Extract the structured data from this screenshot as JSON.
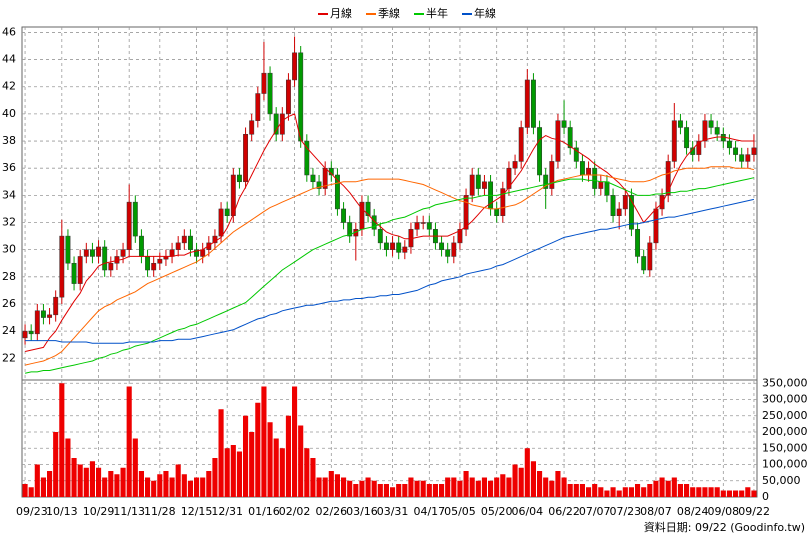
{
  "chart_data": {
    "type": "candlestick",
    "legend": "top",
    "grid": true,
    "up_color": "#d00000",
    "down_color": "#009a00",
    "categories": [
      "09/23",
      null,
      null,
      null,
      null,
      null,
      "10/13",
      null,
      null,
      null,
      null,
      null,
      "10/29",
      null,
      null,
      null,
      null,
      "11/13",
      null,
      null,
      null,
      null,
      "11/28",
      null,
      null,
      null,
      null,
      null,
      "12/15",
      null,
      null,
      null,
      null,
      "12/31",
      null,
      null,
      null,
      null,
      null,
      "01/16",
      null,
      null,
      null,
      null,
      "02/02",
      null,
      null,
      null,
      null,
      null,
      "02/26",
      null,
      null,
      null,
      null,
      "03/16",
      null,
      null,
      null,
      null,
      "03/31",
      null,
      null,
      null,
      null,
      null,
      "04/17",
      null,
      null,
      null,
      null,
      "05/05",
      null,
      null,
      null,
      null,
      null,
      "05/20",
      null,
      null,
      null,
      null,
      "06/04",
      null,
      null,
      null,
      null,
      null,
      "06/22",
      null,
      null,
      null,
      null,
      "07/07",
      null,
      null,
      null,
      null,
      "07/23",
      null,
      null,
      null,
      null,
      "08/07",
      null,
      null,
      null,
      null,
      null,
      "08/24",
      null,
      null,
      null,
      null,
      "09/08",
      null,
      null,
      null,
      null,
      "09/22"
    ],
    "open": [
      23.5,
      24.0,
      23.8,
      25.5,
      25.0,
      25.2,
      26.5,
      31.0,
      29.0,
      27.5,
      29.5,
      30.0,
      29.5,
      30.2,
      28.5,
      29.0,
      29.5,
      30.0,
      33.5,
      31.0,
      29.5,
      28.5,
      29.0,
      29.3,
      29.5,
      30.0,
      30.5,
      31.0,
      30.0,
      29.5,
      30.0,
      30.5,
      31.0,
      33.0,
      32.5,
      35.5,
      35.0,
      38.5,
      39.5,
      41.5,
      43.0,
      40.0,
      38.5,
      40.0,
      42.5,
      44.5,
      38.0,
      35.5,
      35.0,
      34.5,
      36.0,
      35.5,
      33.0,
      32.0,
      31.0,
      31.5,
      33.5,
      32.5,
      31.5,
      30.5,
      30.0,
      30.5,
      29.8,
      30.2,
      31.5,
      32.0,
      32.0,
      31.5,
      30.5,
      30.0,
      29.5,
      30.5,
      31.5,
      34.0,
      35.5,
      34.5,
      35.0,
      33.0,
      32.5,
      34.5,
      36.0,
      36.5,
      39.0,
      42.5,
      39.0,
      35.5,
      34.5,
      36.5,
      39.5,
      39.0,
      37.5,
      36.5,
      35.5,
      36.0,
      34.5,
      35.0,
      34.0,
      32.5,
      33.0,
      34.0,
      31.5,
      29.5,
      28.5,
      30.5,
      33.0,
      34.0,
      36.5,
      39.5,
      39.0,
      37.5,
      37.0,
      38.0,
      39.5,
      39.0,
      38.5,
      38.0,
      37.5,
      37.0,
      36.5,
      37.0
    ],
    "high": [
      24.5,
      24.5,
      26.0,
      26.0,
      25.7,
      27.0,
      32.2,
      31.5,
      29.5,
      30.0,
      30.5,
      30.5,
      30.7,
      30.7,
      29.5,
      30.0,
      30.5,
      34.8,
      34.0,
      31.5,
      30.0,
      29.5,
      29.8,
      30.0,
      30.5,
      31.0,
      31.5,
      31.5,
      30.5,
      30.5,
      31.0,
      31.5,
      33.5,
      33.5,
      36.0,
      36.0,
      39.0,
      40.0,
      42.0,
      45.3,
      43.5,
      40.5,
      40.5,
      43.0,
      45.7,
      45.0,
      38.5,
      36.0,
      35.5,
      36.5,
      36.5,
      36.0,
      33.5,
      32.5,
      32.0,
      34.0,
      34.0,
      33.0,
      32.0,
      31.0,
      31.0,
      31.0,
      30.7,
      32.0,
      32.5,
      32.5,
      32.5,
      32.0,
      31.0,
      30.5,
      31.0,
      32.0,
      34.5,
      36.0,
      36.0,
      35.5,
      35.5,
      33.5,
      35.0,
      36.5,
      37.0,
      39.5,
      43.3,
      43.0,
      39.5,
      36.0,
      37.0,
      40.0,
      41.0,
      39.5,
      38.0,
      37.0,
      36.5,
      36.5,
      35.5,
      35.5,
      34.5,
      33.5,
      34.5,
      34.5,
      32.0,
      30.0,
      31.0,
      33.5,
      34.5,
      37.0,
      40.8,
      40.0,
      39.5,
      38.0,
      38.5,
      40.0,
      40.0,
      39.5,
      39.0,
      38.5,
      38.0,
      37.5,
      37.5,
      38.5
    ],
    "low": [
      23.0,
      23.3,
      23.3,
      24.5,
      24.5,
      24.7,
      26.0,
      28.5,
      27.0,
      27.0,
      29.0,
      29.0,
      29.0,
      28.0,
      28.0,
      28.5,
      29.0,
      29.5,
      30.5,
      29.0,
      28.0,
      28.0,
      28.5,
      28.8,
      29.0,
      29.5,
      30.0,
      29.5,
      29.0,
      29.0,
      29.5,
      30.0,
      30.5,
      32.0,
      32.0,
      34.5,
      34.5,
      38.0,
      39.0,
      41.0,
      39.5,
      38.0,
      38.0,
      39.5,
      42.0,
      37.5,
      35.0,
      34.5,
      34.0,
      34.0,
      35.0,
      32.5,
      31.5,
      30.5,
      29.2,
      31.0,
      32.0,
      31.0,
      30.0,
      29.5,
      29.5,
      29.3,
      29.3,
      29.7,
      31.0,
      31.5,
      31.0,
      30.0,
      29.5,
      29.0,
      29.0,
      30.0,
      31.0,
      33.5,
      34.0,
      34.0,
      32.5,
      32.0,
      32.0,
      34.0,
      35.5,
      36.0,
      38.5,
      38.5,
      35.0,
      33.0,
      34.0,
      36.0,
      38.5,
      37.0,
      36.0,
      35.0,
      35.0,
      34.0,
      34.0,
      33.5,
      32.0,
      31.5,
      32.5,
      31.0,
      29.0,
      28.2,
      28.0,
      30.0,
      32.5,
      33.5,
      36.0,
      38.5,
      37.0,
      36.5,
      36.5,
      37.5,
      38.5,
      38.0,
      37.5,
      37.0,
      36.5,
      36.0,
      36.0,
      36.5
    ],
    "close": [
      24.0,
      23.8,
      25.5,
      25.0,
      25.2,
      26.5,
      31.0,
      29.0,
      27.5,
      29.5,
      30.0,
      29.5,
      30.2,
      28.5,
      29.0,
      29.5,
      30.0,
      33.5,
      31.0,
      29.5,
      28.5,
      29.0,
      29.3,
      29.5,
      30.0,
      30.5,
      31.0,
      30.0,
      29.5,
      30.0,
      30.5,
      31.0,
      33.0,
      32.5,
      35.5,
      35.0,
      38.5,
      39.5,
      41.5,
      43.0,
      40.0,
      38.5,
      40.0,
      42.5,
      44.5,
      38.0,
      35.5,
      35.0,
      34.5,
      36.0,
      35.5,
      33.0,
      32.0,
      31.0,
      31.5,
      33.5,
      32.5,
      31.5,
      30.5,
      30.0,
      30.5,
      29.8,
      30.2,
      31.5,
      32.0,
      32.0,
      31.5,
      30.5,
      30.0,
      29.5,
      30.5,
      31.5,
      34.0,
      35.5,
      34.5,
      35.0,
      33.0,
      32.5,
      34.5,
      36.0,
      36.5,
      39.0,
      42.5,
      39.0,
      35.5,
      34.5,
      36.5,
      39.5,
      39.0,
      37.5,
      36.5,
      35.5,
      36.0,
      34.5,
      35.0,
      34.0,
      32.5,
      33.0,
      34.0,
      31.5,
      29.5,
      28.5,
      30.5,
      33.0,
      34.0,
      36.5,
      39.5,
      39.0,
      37.5,
      37.0,
      38.0,
      39.5,
      39.0,
      38.5,
      38.0,
      37.5,
      37.0,
      36.5,
      37.0,
      37.5
    ],
    "ylim": [
      20.4,
      46.4
    ],
    "yticks": [
      22,
      24,
      26,
      28,
      30,
      32,
      34,
      36,
      38,
      40,
      42,
      44,
      46
    ],
    "lines": [
      {
        "name": "月線",
        "color": "#e00000",
        "values": [
          22.5,
          22.6,
          22.7,
          22.8,
          23.5,
          24,
          24.8,
          25.5,
          26.2,
          26.8,
          27.7,
          28.2,
          28.8,
          29,
          29.1,
          29.2,
          29.3,
          29.5,
          29.5,
          29.5,
          29.5,
          29.5,
          29.5,
          29.5,
          29.5,
          29.6,
          29.6,
          29.8,
          29.9,
          30,
          30.3,
          30.6,
          30.9,
          31.6,
          32.6,
          33.8,
          34.6,
          35.5,
          36.4,
          37.3,
          38.1,
          38.8,
          39.5,
          39.8,
          40,
          38.1,
          37.5,
          37,
          36.5,
          36,
          35.6,
          35.1,
          34.7,
          34.2,
          33.6,
          33,
          32.6,
          32.1,
          31.7,
          31.3,
          31.1,
          31,
          30.8,
          30.8,
          30.9,
          31,
          31,
          31,
          31,
          31,
          31.2,
          31.4,
          31.7,
          32.1,
          32.6,
          33.1,
          33.4,
          33.7,
          34,
          34.6,
          35.2,
          35.8,
          36.6,
          37.4,
          38.1,
          38.4,
          38.2,
          38.1,
          37.9,
          37.6,
          37.3,
          37,
          36.7,
          36.3,
          36,
          35.7,
          35.3,
          34.9,
          34.4,
          33.6,
          32.8,
          32,
          32.5,
          33,
          33.4,
          34.3,
          35.3,
          36.2,
          36.9,
          37.4,
          37.9,
          38.1,
          38.2,
          38.3,
          38.3,
          38.2,
          38.1,
          38,
          38,
          38
        ]
      },
      {
        "name": "季線",
        "color": "#ff6600",
        "values": [
          21.5,
          21.6,
          21.7,
          21.8,
          22,
          22.2,
          22.5,
          23,
          23.5,
          24,
          24.5,
          25,
          25.5,
          25.8,
          26,
          26.3,
          26.5,
          26.7,
          26.9,
          27.2,
          27.5,
          27.7,
          27.9,
          28.1,
          28.3,
          28.5,
          28.7,
          28.9,
          29.1,
          29.4,
          29.7,
          30.1,
          30.5,
          30.9,
          31.3,
          31.6,
          31.9,
          32.2,
          32.5,
          32.8,
          33.1,
          33.3,
          33.5,
          33.7,
          33.9,
          34.1,
          34.3,
          34.5,
          34.6,
          34.7,
          34.8,
          34.9,
          35,
          35,
          35,
          35.1,
          35.2,
          35.2,
          35.2,
          35.2,
          35.2,
          35.2,
          35.1,
          35,
          34.9,
          34.8,
          34.6,
          34.4,
          34.2,
          34,
          33.8,
          33.6,
          33.5,
          33.3,
          33.2,
          33.1,
          33,
          33,
          33.1,
          33.2,
          33.3,
          33.5,
          33.8,
          34.1,
          34.4,
          34.7,
          34.9,
          35.1,
          35.2,
          35.3,
          35.4,
          35.5,
          35.5,
          35.5,
          35.5,
          35.4,
          35.3,
          35.2,
          35.1,
          35,
          35,
          35,
          35.1,
          35.3,
          35.5,
          35.6,
          35.8,
          35.9,
          36,
          36,
          36,
          36,
          36.1,
          36.1,
          36.1,
          36.1,
          36,
          36,
          36,
          35.9
        ]
      },
      {
        "name": "半年",
        "color": "#00c800",
        "values": [
          20.9,
          21,
          21,
          21.1,
          21.1,
          21.2,
          21.3,
          21.4,
          21.5,
          21.6,
          21.7,
          21.8,
          22,
          22.1,
          22.3,
          22.4,
          22.6,
          22.7,
          22.9,
          23,
          23.1,
          23.3,
          23.5,
          23.7,
          23.9,
          24.1,
          24.2,
          24.4,
          24.5,
          24.7,
          24.9,
          25.1,
          25.3,
          25.5,
          25.7,
          25.9,
          26.1,
          26.5,
          26.9,
          27.3,
          27.7,
          28.1,
          28.5,
          28.8,
          29.1,
          29.4,
          29.7,
          30,
          30.2,
          30.4,
          30.6,
          30.8,
          31,
          31.1,
          31.3,
          31.5,
          31.6,
          31.7,
          31.9,
          32,
          32.2,
          32.3,
          32.4,
          32.6,
          32.8,
          33,
          33.1,
          33.3,
          33.4,
          33.5,
          33.6,
          33.7,
          33.8,
          33.8,
          33.9,
          34,
          34,
          34,
          34.1,
          34.2,
          34.3,
          34.4,
          34.5,
          34.6,
          34.7,
          34.8,
          34.9,
          35,
          35.1,
          35.2,
          35.2,
          35.2,
          35.1,
          35.1,
          35,
          35,
          34.8,
          34.6,
          34.4,
          34.2,
          34,
          34,
          34,
          34.1,
          34.1,
          34.2,
          34.2,
          34.3,
          34.3,
          34.4,
          34.5,
          34.5,
          34.6,
          34.7,
          34.8,
          34.9,
          35,
          35.1,
          35.2,
          35.3
        ]
      },
      {
        "name": "年線",
        "color": "#0050c8",
        "values": [
          23.3,
          23.3,
          23.3,
          23.3,
          23.3,
          23.3,
          23.2,
          23.2,
          23.2,
          23.2,
          23.2,
          23.1,
          23.1,
          23.1,
          23.1,
          23.1,
          23.1,
          23.2,
          23.2,
          23.2,
          23.2,
          23.2,
          23.3,
          23.3,
          23.3,
          23.4,
          23.4,
          23.4,
          23.5,
          23.6,
          23.7,
          23.8,
          23.9,
          24,
          24.1,
          24.3,
          24.5,
          24.7,
          24.9,
          25,
          25.2,
          25.3,
          25.5,
          25.6,
          25.7,
          25.8,
          25.9,
          25.9,
          26,
          26.1,
          26.2,
          26.2,
          26.3,
          26.3,
          26.4,
          26.4,
          26.5,
          26.5,
          26.6,
          26.6,
          26.7,
          26.7,
          26.8,
          26.9,
          27,
          27.2,
          27.4,
          27.5,
          27.7,
          27.8,
          27.9,
          28,
          28.2,
          28.3,
          28.4,
          28.5,
          28.6,
          28.8,
          28.9,
          29.1,
          29.3,
          29.5,
          29.7,
          29.9,
          30.1,
          30.3,
          30.5,
          30.7,
          30.9,
          31,
          31.1,
          31.2,
          31.3,
          31.4,
          31.5,
          31.5,
          31.6,
          31.7,
          31.8,
          31.9,
          31.9,
          32,
          32.1,
          32.2,
          32.3,
          32.4,
          32.4,
          32.5,
          32.6,
          32.7,
          32.8,
          32.9,
          33,
          33.1,
          33.2,
          33.3,
          33.4,
          33.5,
          33.6,
          33.7
        ]
      }
    ],
    "volume": {
      "color": "#ee0000",
      "ylim": [
        0,
        360000
      ],
      "yticks": [
        0,
        {
          "value": 50000,
          "label": "50,000"
        },
        {
          "value": 100000,
          "label": "100,000"
        },
        {
          "value": 150000,
          "label": "150,000"
        },
        {
          "value": 200000,
          "label": "200,000"
        },
        {
          "value": 250000,
          "label": "250,000"
        },
        {
          "value": 300000,
          "label": "300,000"
        },
        {
          "value": 350000,
          "label": "350,000"
        }
      ],
      "values": [
        40000,
        30000,
        100000,
        60000,
        80000,
        200000,
        350000,
        180000,
        120000,
        100000,
        90000,
        110000,
        90000,
        60000,
        80000,
        70000,
        90000,
        340000,
        180000,
        80000,
        60000,
        50000,
        70000,
        80000,
        60000,
        100000,
        70000,
        50000,
        60000,
        60000,
        80000,
        120000,
        270000,
        150000,
        160000,
        140000,
        250000,
        200000,
        290000,
        340000,
        230000,
        180000,
        150000,
        250000,
        340000,
        220000,
        150000,
        120000,
        60000,
        60000,
        80000,
        70000,
        60000,
        50000,
        40000,
        50000,
        60000,
        50000,
        40000,
        40000,
        30000,
        40000,
        40000,
        60000,
        50000,
        50000,
        40000,
        40000,
        40000,
        60000,
        60000,
        50000,
        80000,
        60000,
        50000,
        60000,
        50000,
        60000,
        70000,
        60000,
        100000,
        90000,
        150000,
        110000,
        80000,
        60000,
        50000,
        80000,
        60000,
        40000,
        40000,
        40000,
        30000,
        40000,
        30000,
        20000,
        30000,
        20000,
        30000,
        30000,
        40000,
        30000,
        40000,
        50000,
        60000,
        50000,
        60000,
        40000,
        40000,
        30000,
        30000,
        30000,
        30000,
        30000,
        20000,
        20000,
        20000,
        20000,
        30000,
        20000
      ]
    },
    "note": "資料日期: 09/22 (Goodinfo.tw)"
  }
}
